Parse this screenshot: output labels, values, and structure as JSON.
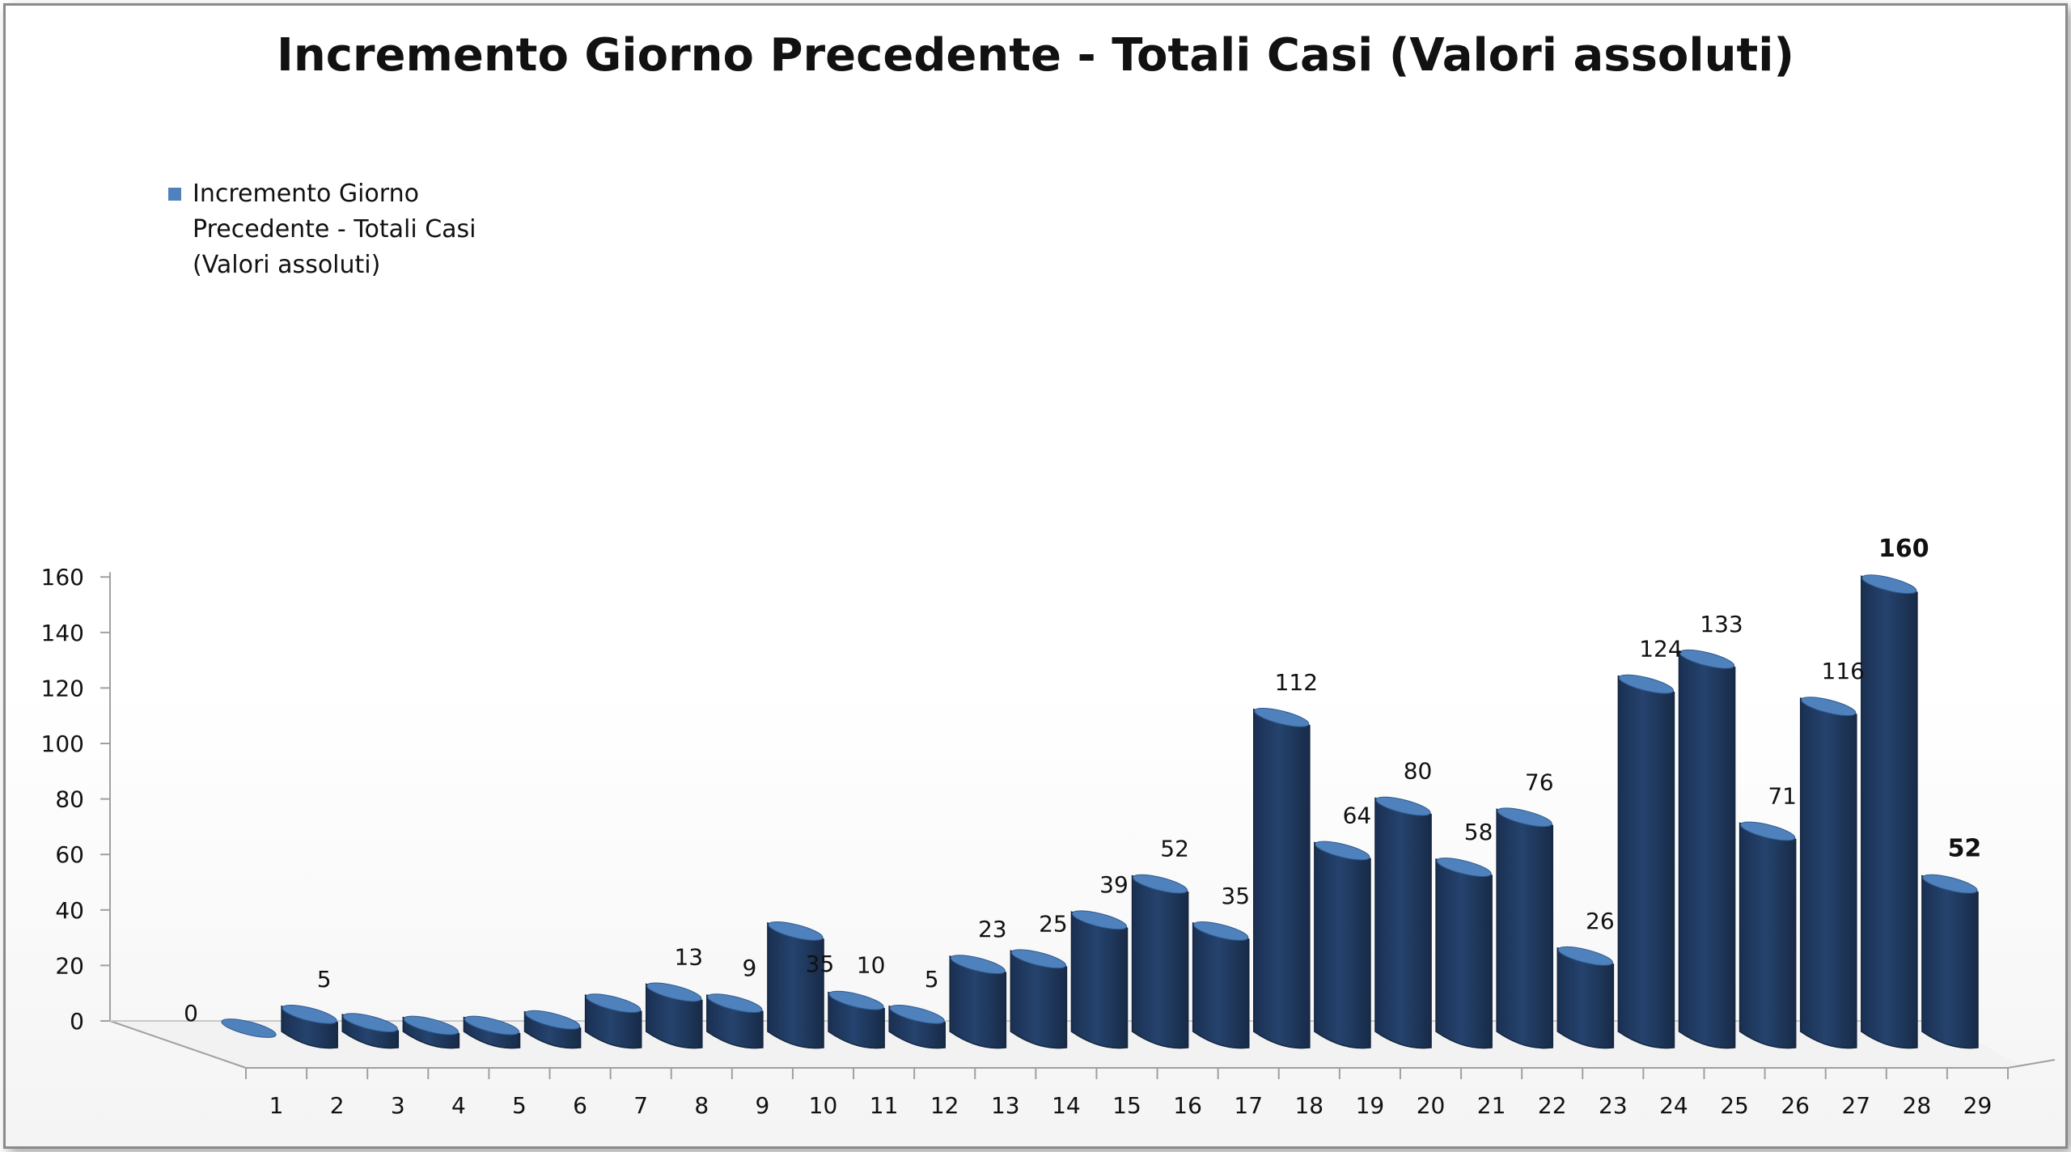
{
  "chart_data": {
    "type": "bar",
    "title": "Incremento Giorno Precedente - Totali Casi (Valori assoluti)",
    "xlabel": "",
    "ylabel": "",
    "ylim": [
      0,
      160
    ],
    "yticks": [
      "0",
      "20",
      "40",
      "60",
      "80",
      "100",
      "120",
      "140",
      "160"
    ],
    "categories": [
      "1",
      "2",
      "3",
      "4",
      "5",
      "6",
      "7",
      "8",
      "9",
      "10",
      "11",
      "12",
      "13",
      "14",
      "15",
      "16",
      "17",
      "18",
      "19",
      "20",
      "21",
      "22",
      "23",
      "24",
      "25",
      "26",
      "27",
      "28",
      "29"
    ],
    "legend_position": "top-left",
    "grid": false,
    "series": [
      {
        "name": "Incremento Giorno Precedente - Totali Casi (Valori assoluti)",
        "color": "#1f3a5f",
        "values": [
          0,
          5,
          2,
          1,
          1,
          3,
          9,
          13,
          9,
          35,
          10,
          5,
          23,
          25,
          39,
          52,
          35,
          112,
          64,
          80,
          58,
          76,
          26,
          124,
          133,
          71,
          116,
          160,
          52
        ],
        "data_labels": [
          "0",
          "5",
          "",
          "",
          "",
          "",
          "",
          "13",
          "9",
          "35",
          "10",
          "5",
          "23",
          "25",
          "39",
          "52",
          "35",
          "112",
          "64",
          "80",
          "58",
          "76",
          "26",
          "124",
          "133",
          "71",
          "116",
          "160",
          "52"
        ]
      }
    ]
  },
  "legend": {
    "label": "Incremento Giorno Precedente - Totali Casi (Valori assoluti)",
    "color": "#4f81bd"
  }
}
